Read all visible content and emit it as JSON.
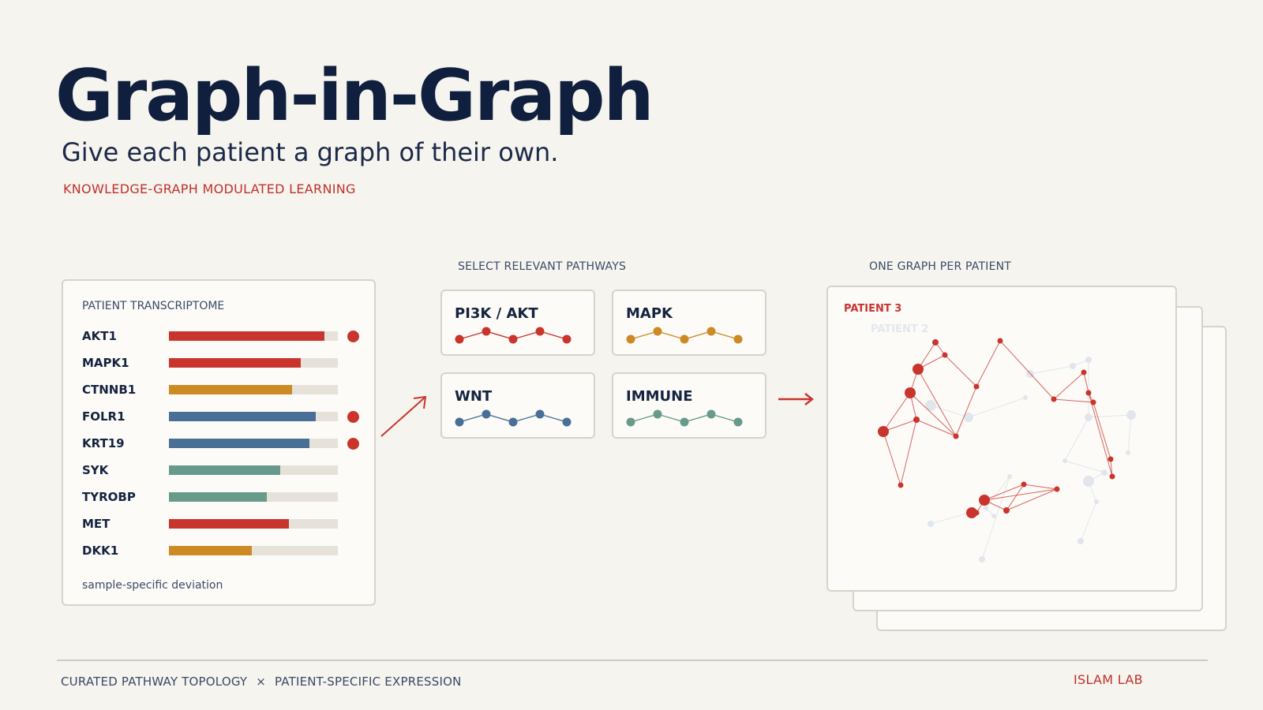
{
  "header": {
    "title": "Graph-in-Graph",
    "subtitle": "Give each patient a graph of their own.",
    "tagline": "KNOWLEDGE-GRAPH MODULATED LEARNING"
  },
  "transcriptome": {
    "title": "PATIENT TRANSCRIPTOME",
    "footnote": "sample-specific deviation",
    "genes": [
      {
        "name": "AKT1",
        "level": 0.92,
        "color": "#c9342d",
        "flag": true
      },
      {
        "name": "MAPK1",
        "level": 0.78,
        "color": "#c9342d",
        "flag": false
      },
      {
        "name": "CTNNB1",
        "level": 0.73,
        "color": "#cc8a24",
        "flag": false
      },
      {
        "name": "FOLR1",
        "level": 0.87,
        "color": "#4a6f96",
        "flag": true
      },
      {
        "name": "KRT19",
        "level": 0.83,
        "color": "#4a6f96",
        "flag": true
      },
      {
        "name": "SYK",
        "level": 0.66,
        "color": "#679a8a",
        "flag": false
      },
      {
        "name": "TYROBP",
        "level": 0.58,
        "color": "#679a8a",
        "flag": false
      },
      {
        "name": "MET",
        "level": 0.71,
        "color": "#c9342d",
        "flag": false
      },
      {
        "name": "DKK1",
        "level": 0.49,
        "color": "#cc8a24",
        "flag": false
      }
    ]
  },
  "pathways": {
    "label": "SELECT RELEVANT PATHWAYS",
    "items": [
      {
        "name": "PI3K / AKT",
        "color": "#c9342d"
      },
      {
        "name": "MAPK",
        "color": "#cc8a24"
      },
      {
        "name": "WNT",
        "color": "#4a6f96"
      },
      {
        "name": "IMMUNE",
        "color": "#679a8a"
      }
    ]
  },
  "graphs": {
    "label": "ONE GRAPH PER PATIENT",
    "front_label": "PATIENT 3",
    "back_label": "PATIENT 2",
    "accent": "#c9342d"
  },
  "footer": {
    "left_a": "CURATED PATHWAY TOPOLOGY",
    "separator": "×",
    "left_b": "PATIENT-SPECIFIC EXPRESSION",
    "right": "ISLAM LAB"
  }
}
